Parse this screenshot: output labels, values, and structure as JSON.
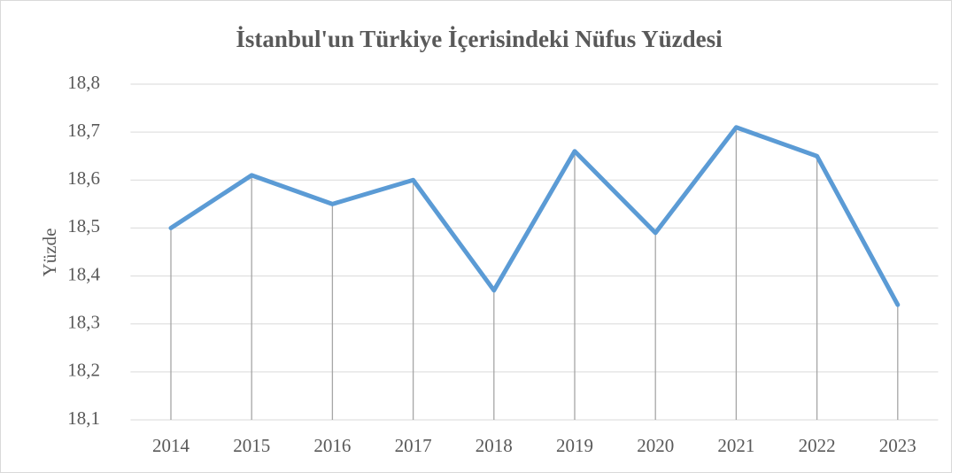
{
  "chart_data": {
    "type": "line",
    "title": "İstanbul'un Türkiye İçerisindeki Nüfus Yüzdesi",
    "y_label": "Yüzde",
    "categories": [
      "2014",
      "2015",
      "2016",
      "2017",
      "2018",
      "2019",
      "2020",
      "2021",
      "2022",
      "2023"
    ],
    "values": [
      18.5,
      18.61,
      18.55,
      18.6,
      18.37,
      18.66,
      18.49,
      18.71,
      18.65,
      18.34
    ],
    "color": "#5b9bd5",
    "drop_lines": true,
    "grid": true,
    "ylim": [
      18.1,
      18.8
    ],
    "yticks": [
      {
        "value": 18.1,
        "label": "18,1"
      },
      {
        "value": 18.2,
        "label": "18,2"
      },
      {
        "value": 18.3,
        "label": "18,3"
      },
      {
        "value": 18.4,
        "label": "18,4"
      },
      {
        "value": 18.5,
        "label": "18,5"
      },
      {
        "value": 18.6,
        "label": "18,6"
      },
      {
        "value": 18.7,
        "label": "18,7"
      },
      {
        "value": 18.8,
        "label": "18,8"
      }
    ]
  }
}
